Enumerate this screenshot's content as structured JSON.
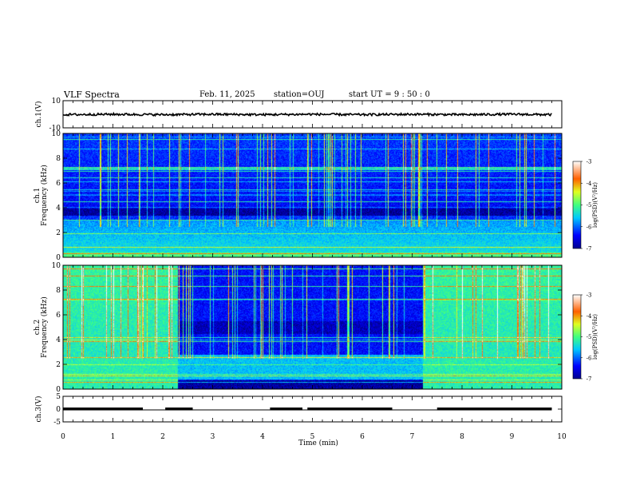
{
  "header": {
    "title": "VLF Spectra",
    "date": "Feb. 11, 2025",
    "station": "station=OUJ",
    "start": "start UT =  9 : 50 : 0"
  },
  "chart_data": [
    {
      "type": "line",
      "panel": "ch1-waveform",
      "ylabel": "ch.1(V)",
      "ylim": [
        -10,
        10
      ],
      "yticks": [
        "10",
        "-10"
      ],
      "x": [
        0,
        1,
        2,
        3,
        4,
        5,
        6,
        7,
        8,
        9,
        9.8
      ],
      "values": [
        -0.3,
        0,
        -0.3,
        0,
        -0.3,
        0,
        -0.3,
        0,
        -0.3,
        0,
        -0.3
      ],
      "xlim": [
        0,
        10
      ]
    },
    {
      "type": "heatmap",
      "panel": "ch1-spectrogram",
      "ylabel": "ch.1\nFrequency (kHz)",
      "ylabel_line1": "ch.1",
      "ylabel_line2": "Frequency (kHz)",
      "ylim": [
        0,
        10
      ],
      "yticks": [
        "0",
        "2",
        "4",
        "6",
        "8",
        "10"
      ],
      "xlim": [
        0,
        10
      ],
      "colorbar": {
        "label": "log(PSD)(V²/Hz)",
        "range": [
          -7,
          -3
        ],
        "ticks": [
          "-3",
          "-4",
          "-5",
          "-6",
          "-7"
        ]
      }
    },
    {
      "type": "heatmap",
      "panel": "ch2-spectrogram",
      "ylabel_line1": "ch.2",
      "ylabel_line2": "Frequency (kHz)",
      "ylim": [
        0,
        10
      ],
      "yticks": [
        "0",
        "2",
        "4",
        "6",
        "8",
        "10"
      ],
      "xlim": [
        0,
        10
      ],
      "colorbar": {
        "label": "log(PSD)(V²/Hz)",
        "range": [
          -7,
          -3
        ],
        "ticks": [
          "-3",
          "-4",
          "-5",
          "-6",
          "-7"
        ]
      }
    },
    {
      "type": "line",
      "panel": "ch3-digital",
      "ylabel": "ch.3(V)",
      "ylim": [
        -5,
        5
      ],
      "yticks": [
        "5",
        "0",
        "-5"
      ],
      "segments_high": [
        [
          0,
          1.6
        ],
        [
          2.05,
          2.6
        ],
        [
          4.15,
          4.8
        ],
        [
          4.9,
          6.6
        ],
        [
          7.5,
          9.8
        ]
      ],
      "high_value": 0.3,
      "low_value": -0.3,
      "xlim": [
        0,
        10
      ]
    }
  ],
  "xaxis": {
    "label": "Time (min)",
    "ticks": [
      "0",
      "1",
      "2",
      "3",
      "4",
      "5",
      "6",
      "7",
      "8",
      "9",
      "10"
    ]
  }
}
